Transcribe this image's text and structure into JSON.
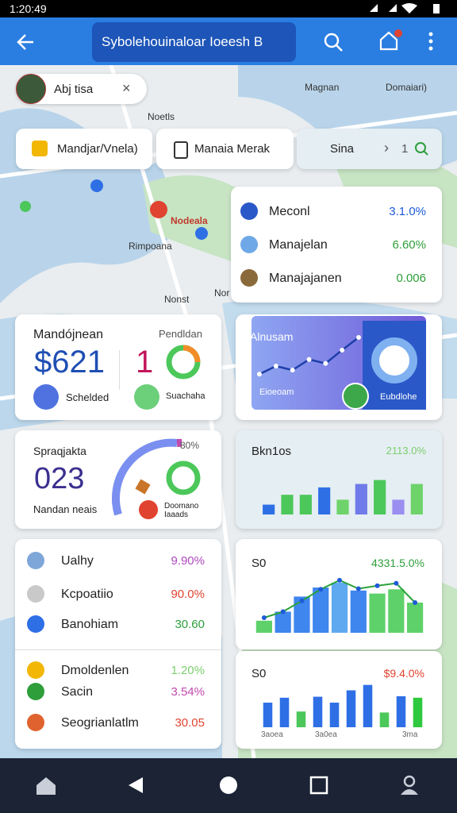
{
  "status_bar": {
    "time": "1:20:49"
  },
  "header": {
    "search": "Sybolehouinaloar Ioeesh B"
  },
  "map": {
    "chip": "Abj tisa",
    "labels": [
      "Noetls",
      "Magnan",
      "Domaiari)",
      "Nodeala",
      "Rimpoana",
      "Nonst",
      "Nor"
    ]
  },
  "filters": [
    "Mandjar/Vnela)",
    "Manaia Merak",
    "Sina"
  ],
  "filter_count": "1",
  "top_list": {
    "rows": [
      {
        "name": "Meconl",
        "value": "3.1.0%",
        "color": "#1e5bd8"
      },
      {
        "name": "Manajelan",
        "value": "6.60%",
        "color": "#2e9e3a"
      },
      {
        "name": "Manajajanen",
        "value": "0.006",
        "color": "#2e9e3a"
      }
    ]
  },
  "revenue_card": {
    "title": "Mandójnean",
    "amount": "$621",
    "badge": "Schelded",
    "side_title": "Pendldan",
    "side_value": "1",
    "side_badge": "Suachaha"
  },
  "area_card": {
    "title": "Alnusam",
    "caption": "Eioeoam",
    "badge": "Eubdlohe",
    "ylim": [
      0,
      10
    ],
    "points": [
      2,
      3.2,
      2.6,
      4.2,
      3.6,
      5.6,
      7.5
    ]
  },
  "gauge_card": {
    "title": "Spraqjakta",
    "value": "023",
    "caption": "Nandan neais",
    "percent": "80%",
    "badge": "Doomano Iaaads"
  },
  "bar_card": {
    "title": "Bkn1os",
    "stat": "2113.0%",
    "ylim": [
      0,
      10
    ],
    "bars": [
      2,
      4,
      4,
      5.5,
      3,
      6.2,
      7,
      3,
      6.2
    ],
    "colors": [
      "#2f6fe6",
      "#4cc75a",
      "#4cc75a",
      "#2f6fe6",
      "#6ed36a",
      "#6f7be8",
      "#4cc75a",
      "#9a8ef0",
      "#6ed36a"
    ]
  },
  "metrics_list": {
    "rows": [
      {
        "name": "Ualhy",
        "value": "9.90%",
        "color": "#b04ac0"
      },
      {
        "name": "Kcpoatiio",
        "value": "90.0%",
        "color": "#e0432f"
      },
      {
        "name": "Banohiam",
        "value": "30.60",
        "color": "#2e9e3a"
      },
      {
        "name": "Dmoldenlen",
        "value": "1.20%",
        "color": "#7ccf6e"
      },
      {
        "name": "Sacin",
        "value": "3.54%",
        "color": "#c04ab0"
      },
      {
        "name": "Seogrianlatlm",
        "value": "30.05",
        "color": "#e0432f"
      }
    ]
  },
  "combo_card": {
    "title": "S0",
    "stat": "4331.5.0%",
    "ylim": [
      0,
      10
    ],
    "bars": [
      2,
      3.5,
      6,
      7.5,
      8.3,
      7,
      6.5,
      7.2,
      5
    ],
    "colors": [
      "#5fd16a",
      "#3f86ee",
      "#3f86ee",
      "#3f86ee",
      "#5fa9f0",
      "#3f86ee",
      "#5fd16a",
      "#5fd16a",
      "#5fd16a"
    ],
    "line": [
      2.5,
      3.5,
      5.3,
      7.2,
      8.7,
      7.3,
      7.8,
      8.2,
      5
    ]
  },
  "column_card": {
    "title": "S0",
    "stat": "$9.4.0%",
    "ylim": [
      0,
      10
    ],
    "bars": [
      5,
      6,
      3.2,
      6.2,
      5,
      7.5,
      8.6,
      3,
      6.3,
      6
    ],
    "colors": [
      "#2f6fe6",
      "#2f6fe6",
      "#4cc75a",
      "#2f6fe6",
      "#2f6fe6",
      "#2f6fe6",
      "#2f6fe6",
      "#4cc75a",
      "#2f6fe6",
      "#2ec93e"
    ],
    "x_labels": [
      "3aoea",
      "3a0ea",
      "3ma"
    ]
  }
}
